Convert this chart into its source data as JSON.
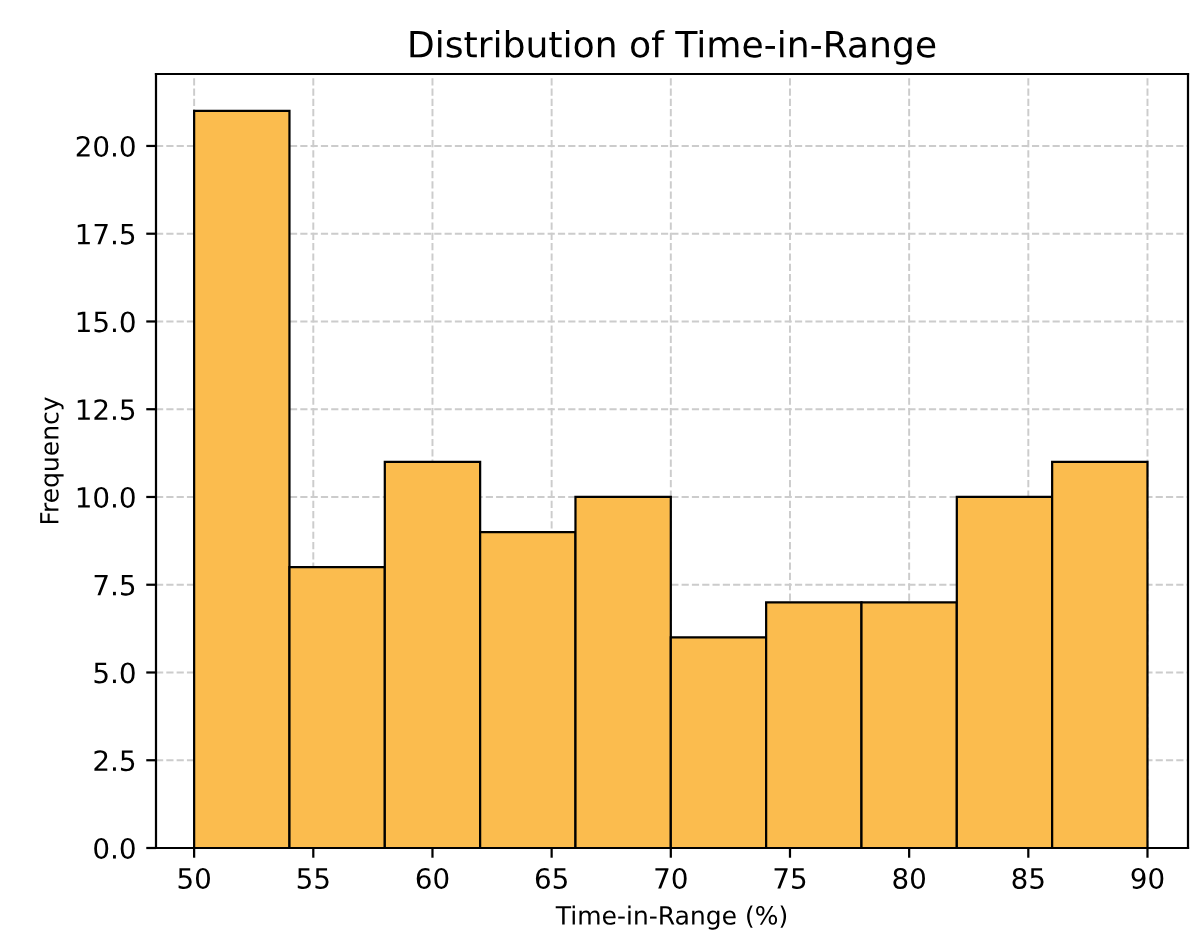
{
  "chart_data": {
    "type": "histogram",
    "title": "Distribution of Time-in-Range",
    "xlabel": "Time-in-Range (%)",
    "ylabel": "Frequency",
    "bins": [
      50,
      54,
      58,
      62,
      66,
      70,
      74,
      78,
      82,
      86,
      90
    ],
    "values": [
      21,
      8,
      11,
      9,
      10,
      6,
      7,
      7,
      10,
      11
    ],
    "color": "#fbbc4e",
    "xlim": [
      48.4,
      91.7
    ],
    "ylim": [
      0,
      22.05
    ],
    "xticks": [
      50,
      55,
      60,
      65,
      70,
      75,
      80,
      85,
      90
    ],
    "yticks": [
      {
        "value": 0,
        "label": "0.0"
      },
      2.5,
      {
        "value": 5,
        "label": "5.0"
      },
      7.5,
      {
        "value": 10,
        "label": "10.0"
      },
      12.5,
      {
        "value": 15,
        "label": "15.0"
      },
      17.5,
      {
        "value": 20,
        "label": "20.0"
      }
    ],
    "grid": true
  }
}
